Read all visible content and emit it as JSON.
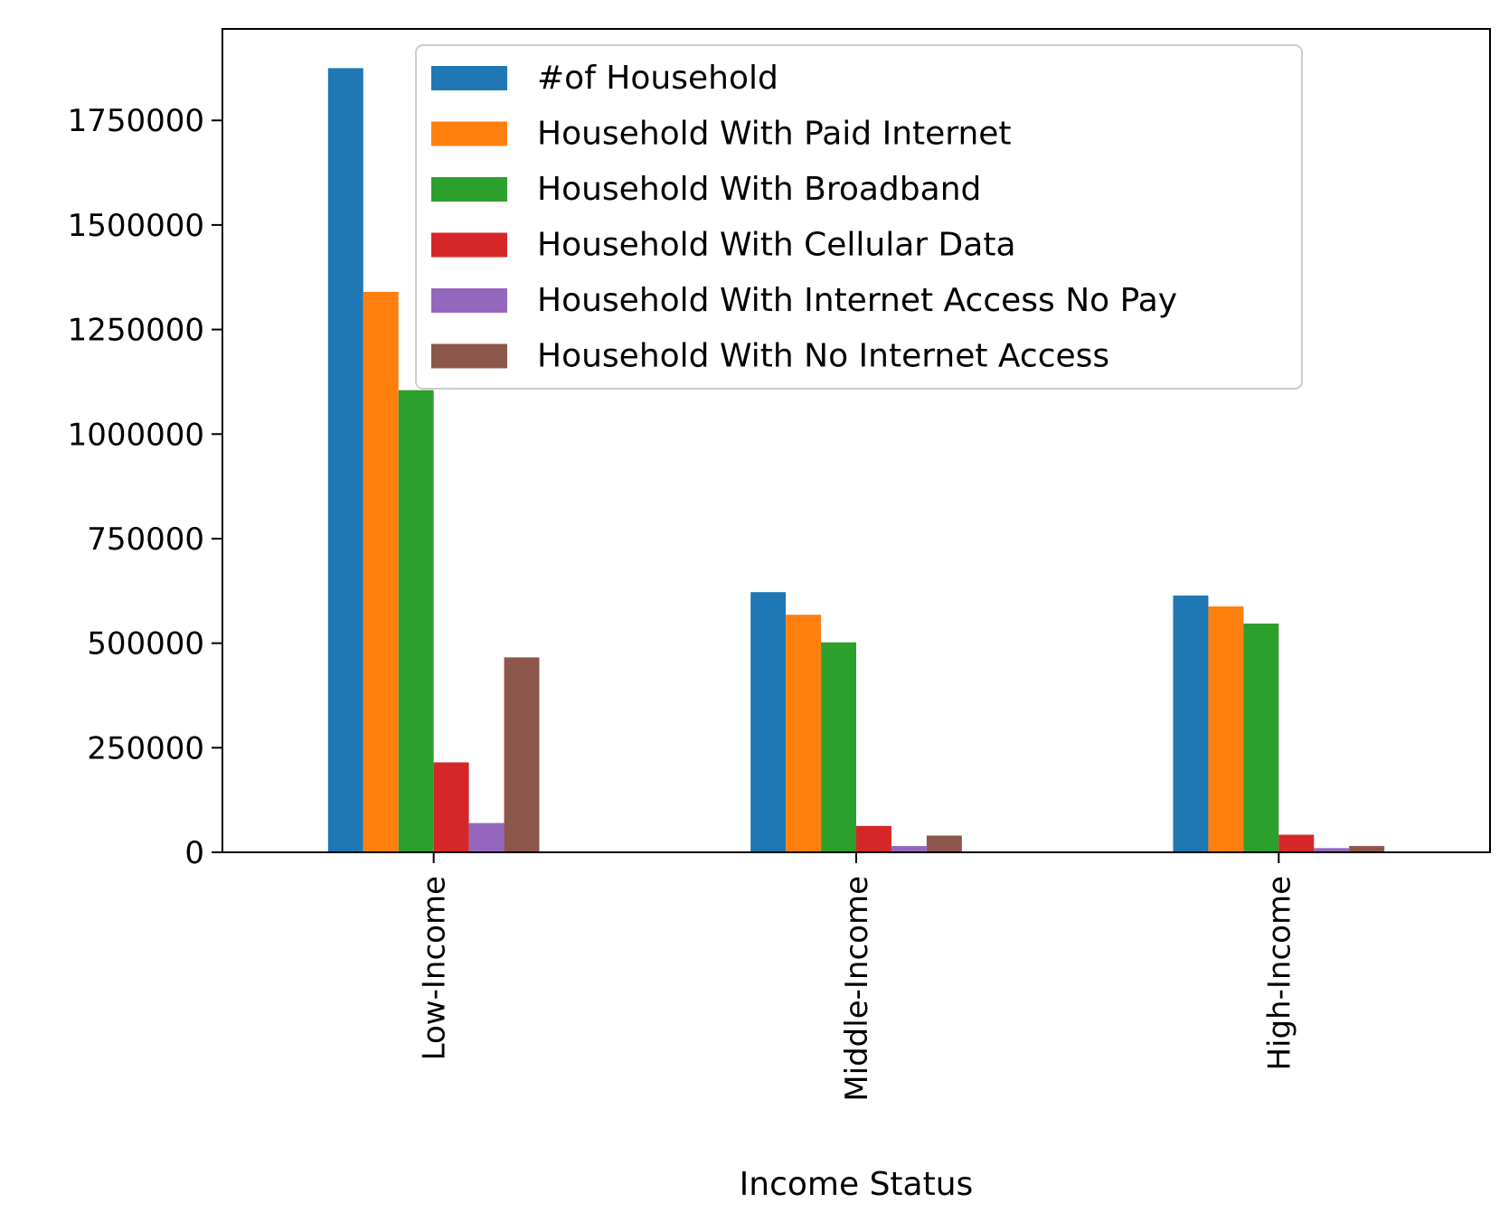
{
  "chart_data": {
    "type": "bar",
    "title": "",
    "xlabel": "Income Status",
    "ylabel": "",
    "categories": [
      "Low-Income",
      "Middle-Income",
      "High-Income"
    ],
    "series": [
      {
        "name": "#of Household",
        "color": "#1f77b4",
        "values": [
          1875000,
          622000,
          614000
        ]
      },
      {
        "name": "Household With Paid Internet",
        "color": "#ff7f0e",
        "values": [
          1340000,
          568000,
          588000
        ]
      },
      {
        "name": "Household With Broadband",
        "color": "#2ca02c",
        "values": [
          1105000,
          502000,
          547000
        ]
      },
      {
        "name": "Household With Cellular Data",
        "color": "#d62728",
        "values": [
          215000,
          63000,
          42000
        ]
      },
      {
        "name": "Household With Internet Access No Pay",
        "color": "#9467bd",
        "values": [
          70000,
          15000,
          10000
        ]
      },
      {
        "name": "Household With No Internet Access",
        "color": "#8c564b",
        "values": [
          466000,
          40000,
          15000
        ]
      }
    ],
    "yticks": [
      0,
      250000,
      500000,
      750000,
      1000000,
      1250000,
      1500000,
      1750000
    ],
    "ylim": [
      0,
      1968750
    ],
    "legend_position": "top-center",
    "grid": false
  }
}
